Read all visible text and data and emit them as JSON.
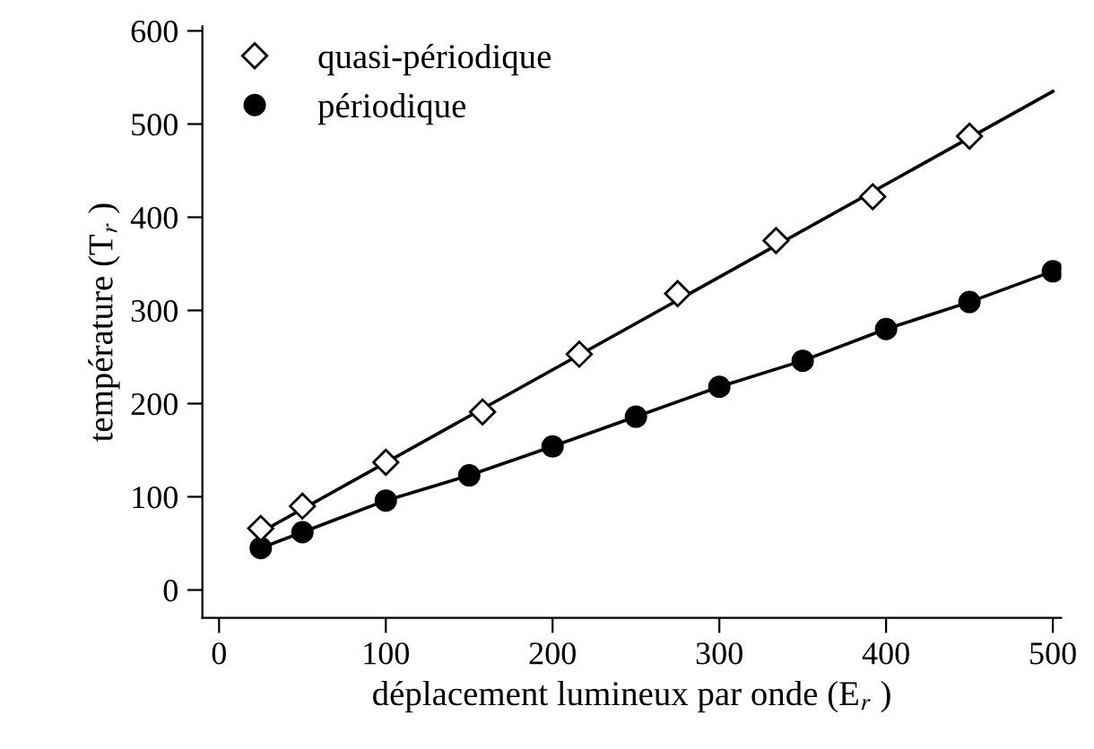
{
  "chart_data": {
    "type": "scatter",
    "xlabel": "déplacement lumineux par onde (E$_{r}$ )",
    "ylabel": "température (T$_{r}$ )",
    "xlim": [
      -10,
      505
    ],
    "ylim": [
      -30,
      605
    ],
    "xticks": [
      0,
      100,
      200,
      300,
      400,
      500
    ],
    "yticks": [
      0,
      100,
      200,
      300,
      400,
      500,
      600
    ],
    "grid": false,
    "legend": "top left",
    "series": [
      {
        "name": "quasi-périodique",
        "marker": "diamond",
        "color": "#000000",
        "x": [
          25,
          50,
          100,
          158,
          216,
          275,
          334,
          392,
          450
        ],
        "values": [
          66,
          90,
          137,
          191,
          253,
          318,
          375,
          422,
          487
        ]
      },
      {
        "type": "line",
        "marker": "none",
        "color": "#000000",
        "x": [
          25,
          500
        ],
        "values": [
          62,
          535
        ]
      },
      {
        "name": "périodique",
        "type": "line",
        "marker": "circle",
        "color": "#000000",
        "x": [
          25,
          50,
          100,
          150,
          200,
          250,
          300,
          350,
          400,
          450,
          500
        ],
        "values": [
          45,
          62,
          96,
          123,
          154,
          186,
          218,
          246,
          280,
          309,
          342
        ]
      }
    ]
  }
}
